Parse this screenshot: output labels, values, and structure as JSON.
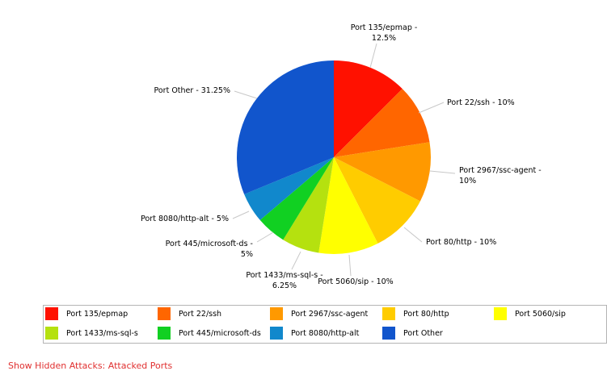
{
  "chart_data": {
    "type": "pie",
    "title": "",
    "slices": [
      {
        "name": "Port 135/epmap",
        "value": 12.5,
        "label_lines": [
          "Port 135/epmap -",
          "12.5%"
        ],
        "color": "#ff1100"
      },
      {
        "name": "Port 22/ssh",
        "value": 10,
        "label_lines": [
          "Port 22/ssh - 10%"
        ],
        "color": "#ff6600"
      },
      {
        "name": "Port 2967/ssc-agent",
        "value": 10,
        "label_lines": [
          "Port 2967/ssc-agent -",
          "10%"
        ],
        "color": "#ff9900"
      },
      {
        "name": "Port 80/http",
        "value": 10,
        "label_lines": [
          "Port 80/http - 10%"
        ],
        "color": "#ffcc00"
      },
      {
        "name": "Port 5060/sip",
        "value": 10,
        "label_lines": [
          "Port 5060/sip - 10%"
        ],
        "color": "#ffff00"
      },
      {
        "name": "Port 1433/ms-sql-s",
        "value": 6.25,
        "label_lines": [
          "Port 1433/ms-sql-s -",
          "6.25%"
        ],
        "color": "#b5e10f"
      },
      {
        "name": "Port 445/microsoft-ds",
        "value": 5,
        "label_lines": [
          "Port 445/microsoft-ds -",
          "5%"
        ],
        "color": "#11d022"
      },
      {
        "name": "Port 8080/http-alt",
        "value": 5,
        "label_lines": [
          "Port 8080/http-alt - 5%"
        ],
        "color": "#1188cc"
      },
      {
        "name": "Port Other",
        "value": 31.25,
        "label_lines": [
          "Port Other - 31.25%"
        ],
        "color": "#1155cc"
      }
    ],
    "legend_placement": "bottom"
  },
  "legend": {
    "items": [
      {
        "label": "Port 135/epmap",
        "color": "#ff1100"
      },
      {
        "label": "Port 22/ssh",
        "color": "#ff6600"
      },
      {
        "label": "Port 2967/ssc-agent",
        "color": "#ff9900"
      },
      {
        "label": "Port 80/http",
        "color": "#ffcc00"
      },
      {
        "label": "Port 5060/sip",
        "color": "#ffff00"
      },
      {
        "label": "Port 1433/ms-sql-s",
        "color": "#b5e10f"
      },
      {
        "label": "Port 445/microsoft-ds",
        "color": "#11d022"
      },
      {
        "label": "Port 8080/http-alt",
        "color": "#1188cc"
      },
      {
        "label": "Port Other",
        "color": "#1155cc"
      }
    ]
  },
  "footer": {
    "text": "Show Hidden  Attacks: Attacked Ports"
  }
}
